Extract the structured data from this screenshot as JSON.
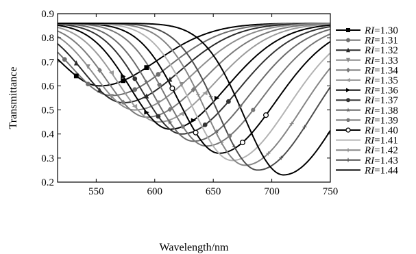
{
  "chart_data": {
    "type": "line",
    "title": "",
    "xlabel": "Wavelength/nm",
    "ylabel": "Transmittance",
    "xlim": [
      517,
      750
    ],
    "ylim": [
      0.2,
      0.9
    ],
    "xticks": [
      550,
      600,
      650,
      700,
      750
    ],
    "yticks": [
      0.2,
      0.3,
      0.4,
      0.5,
      0.6,
      0.7,
      0.8,
      0.9
    ],
    "grid": false,
    "legend_position": "right",
    "legend_prefix": "RI",
    "series": [
      {
        "name": "=1.30",
        "min_wavelength": 553,
        "min_transmittance": 0.6,
        "marker": "square",
        "color": "#000000"
      },
      {
        "name": "=1.31",
        "min_wavelength": 563,
        "min_transmittance": 0.56,
        "marker": "circle",
        "color": "#6e6e6e"
      },
      {
        "name": "=1.32",
        "min_wavelength": 573,
        "min_transmittance": 0.53,
        "marker": "triangle-up",
        "color": "#2a2a2a"
      },
      {
        "name": "=1.33",
        "min_wavelength": 583,
        "min_transmittance": 0.5,
        "marker": "triangle-down",
        "color": "#8c8c8c"
      },
      {
        "name": "=1.34",
        "min_wavelength": 593,
        "min_transmittance": 0.47,
        "marker": "diamond",
        "color": "#7a7a7a"
      },
      {
        "name": "=1.35",
        "min_wavelength": 603,
        "min_transmittance": 0.45,
        "marker": "triangle-left",
        "color": "#9a9a9a"
      },
      {
        "name": "=1.36",
        "min_wavelength": 613,
        "min_transmittance": 0.42,
        "marker": "triangle-right",
        "color": "#000000"
      },
      {
        "name": "=1.37",
        "min_wavelength": 623,
        "min_transmittance": 0.4,
        "marker": "circle",
        "color": "#333333"
      },
      {
        "name": "=1.38",
        "min_wavelength": 633,
        "min_transmittance": 0.37,
        "marker": "star",
        "color": "#6a6a6a"
      },
      {
        "name": "=1.39",
        "min_wavelength": 644,
        "min_transmittance": 0.35,
        "marker": "hexagon",
        "color": "#777777"
      },
      {
        "name": "=1.40",
        "min_wavelength": 655,
        "min_transmittance": 0.32,
        "marker": "circle-open",
        "color": "#000000"
      },
      {
        "name": "=1.41",
        "min_wavelength": 666,
        "min_transmittance": 0.29,
        "marker": "none",
        "color": "#b3b3b3"
      },
      {
        "name": "=1.42",
        "min_wavelength": 677,
        "min_transmittance": 0.27,
        "marker": "tick",
        "color": "#858585"
      },
      {
        "name": "=1.43",
        "min_wavelength": 688,
        "min_transmittance": 0.25,
        "marker": "tick",
        "color": "#4d4d4d"
      },
      {
        "name": "=1.44",
        "min_wavelength": 710,
        "min_transmittance": 0.23,
        "marker": "none",
        "color": "#000000"
      }
    ]
  }
}
